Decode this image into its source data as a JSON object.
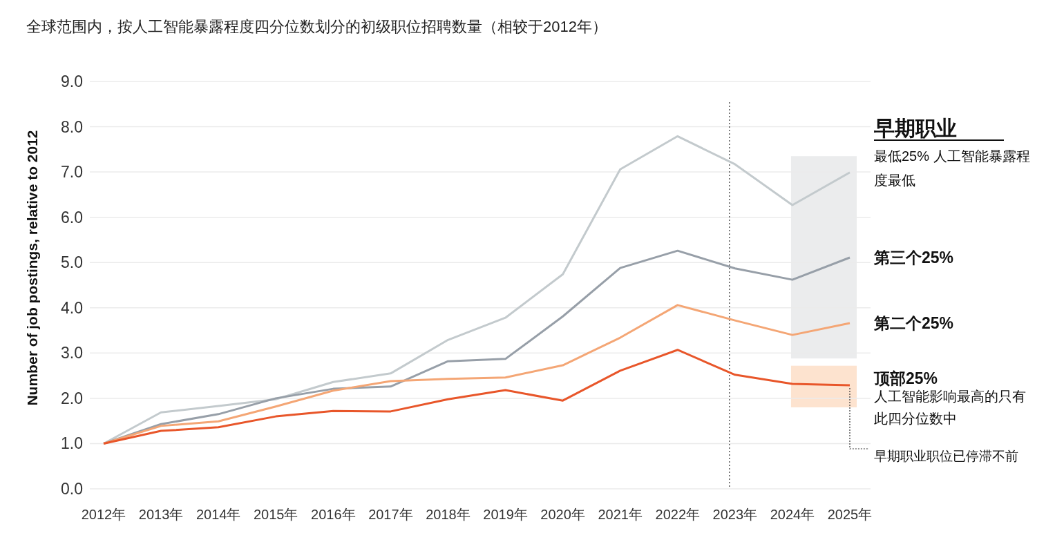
{
  "chart_data": {
    "type": "line",
    "title": "全球范围内，按人工智能暴露程度四分位数划分的初级职位招聘数量（相较于2012年）",
    "ylabel": "Number of job postings, relative to 2012",
    "legend_title": "早期职业",
    "categories": [
      "2012年",
      "2013年",
      "2014年",
      "2015年",
      "2016年",
      "2017年",
      "2018年",
      "2019年",
      "2020年",
      "2021年",
      "2022年",
      "2023年",
      "2024年",
      "2025年"
    ],
    "series": [
      {
        "name": "最低25% 人工智能暴露程度最低",
        "color": "#c3cacd",
        "values": [
          1.0,
          1.69,
          1.83,
          1.98,
          2.36,
          2.55,
          3.29,
          3.78,
          4.74,
          7.06,
          7.79,
          7.17,
          6.27,
          6.99
        ]
      },
      {
        "name": "第三个25%",
        "color": "#979fa8",
        "values": [
          1.0,
          1.43,
          1.65,
          2.0,
          2.21,
          2.26,
          2.82,
          2.87,
          3.81,
          4.88,
          5.26,
          4.87,
          4.62,
          5.11
        ]
      },
      {
        "name": "第二个25%",
        "color": "#f4a675",
        "values": [
          1.0,
          1.39,
          1.49,
          1.82,
          2.17,
          2.38,
          2.43,
          2.46,
          2.73,
          3.34,
          4.06,
          3.72,
          3.4,
          3.66
        ]
      },
      {
        "name": "顶部25%",
        "color": "#e8562a",
        "values": [
          1.0,
          1.28,
          1.36,
          1.6,
          1.72,
          1.71,
          1.98,
          2.18,
          1.95,
          2.61,
          3.07,
          2.52,
          2.32,
          2.29
        ]
      }
    ],
    "ylim": [
      0,
      9
    ],
    "yticks": [
      {
        "value": 0,
        "label": "0.0"
      },
      {
        "value": 1,
        "label": "1.0"
      },
      {
        "value": 2,
        "label": "2.0"
      },
      {
        "value": 3,
        "label": "3.0"
      },
      {
        "value": 4,
        "label": "4.0"
      },
      {
        "value": 5,
        "label": "5.0"
      },
      {
        "value": 6,
        "label": "6.0"
      },
      {
        "value": 7,
        "label": "7.0"
      },
      {
        "value": 8,
        "label": "8.0"
      },
      {
        "value": 9,
        "label": "9.0"
      }
    ],
    "grid": "y",
    "legend": "right",
    "line_style": "solid",
    "marker": "none",
    "ref_lines": [
      {
        "axis": "x",
        "value": "2023年",
        "line_style": "dotted",
        "color": "#333333"
      }
    ],
    "bands": [
      {
        "axis": "y",
        "from": 2.88,
        "to": 7.35,
        "color": "#ebeced"
      },
      {
        "axis": "y",
        "from": 1.8,
        "to": 2.72,
        "color": "#fde3cf"
      }
    ],
    "annotations": [
      "人工智能影响最高的只有此四分位数中",
      {
        "text": "早期职业职位已停滞不前",
        "x": "2025年",
        "y": 2.29
      }
    ]
  }
}
